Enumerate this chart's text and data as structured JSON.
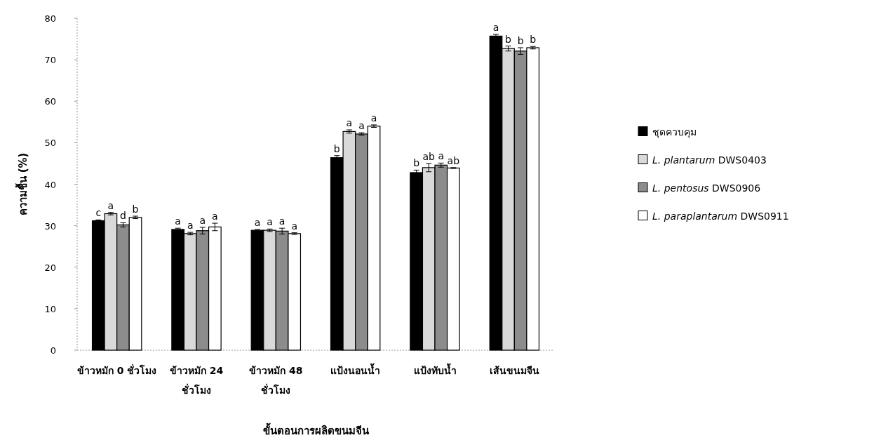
{
  "chart_data": {
    "type": "bar",
    "xlabel": "ขั้นตอนการผลิตขนมจีน",
    "ylabel": "ความชื้น (%)",
    "categories": [
      "ข้าวหมัก 0 ชั่วโมง",
      "ข้าวหมัก 24 ชั่วโมง",
      "ข้าวหมัก 48 ชั่วโมง",
      "แป้งนอนน้ำ",
      "แป้งทับน้ำ",
      "เส้นขนมจีน"
    ],
    "ylim": [
      0,
      80
    ],
    "yticks": [
      0,
      10,
      20,
      30,
      40,
      50,
      60,
      70,
      80
    ],
    "grid": false,
    "legend": "right",
    "series": [
      {
        "name": "ชุดควบคุม",
        "color": "#000000",
        "values": [
          31.2,
          29.1,
          28.9,
          46.4,
          42.8,
          75.7
        ],
        "errors": [
          0.2,
          0.3,
          0.2,
          0.5,
          0.6,
          0.4
        ],
        "value_labels": [
          "c",
          "a",
          "a",
          "b",
          "b",
          "a"
        ]
      },
      {
        "name": "L. plantarum DWS0403",
        "color": "#d9d9d9",
        "values": [
          32.9,
          28.1,
          28.9,
          52.7,
          44.0,
          72.7
        ],
        "errors": [
          0.3,
          0.3,
          0.3,
          0.4,
          1.0,
          0.6
        ],
        "value_labels": [
          "a",
          "a",
          "a",
          "a",
          "ab",
          "b"
        ]
      },
      {
        "name": "L. pentosus DWS0906",
        "color": "#8c8c8c",
        "values": [
          30.2,
          28.8,
          28.7,
          52.1,
          44.6,
          72.1
        ],
        "errors": [
          0.5,
          0.8,
          0.7,
          0.3,
          0.5,
          0.8
        ],
        "value_labels": [
          "d",
          "a",
          "a",
          "a",
          "a",
          "b"
        ]
      },
      {
        "name": "L. paraplantarum DWS0911",
        "color": "#ffffff",
        "values": [
          32.0,
          29.7,
          28.1,
          54.0,
          43.9,
          72.9
        ],
        "errors": [
          0.3,
          0.9,
          0.2,
          0.3,
          0.1,
          0.3
        ],
        "value_labels": [
          "b",
          "a",
          "a",
          "a",
          "ab",
          "b"
        ]
      }
    ]
  }
}
